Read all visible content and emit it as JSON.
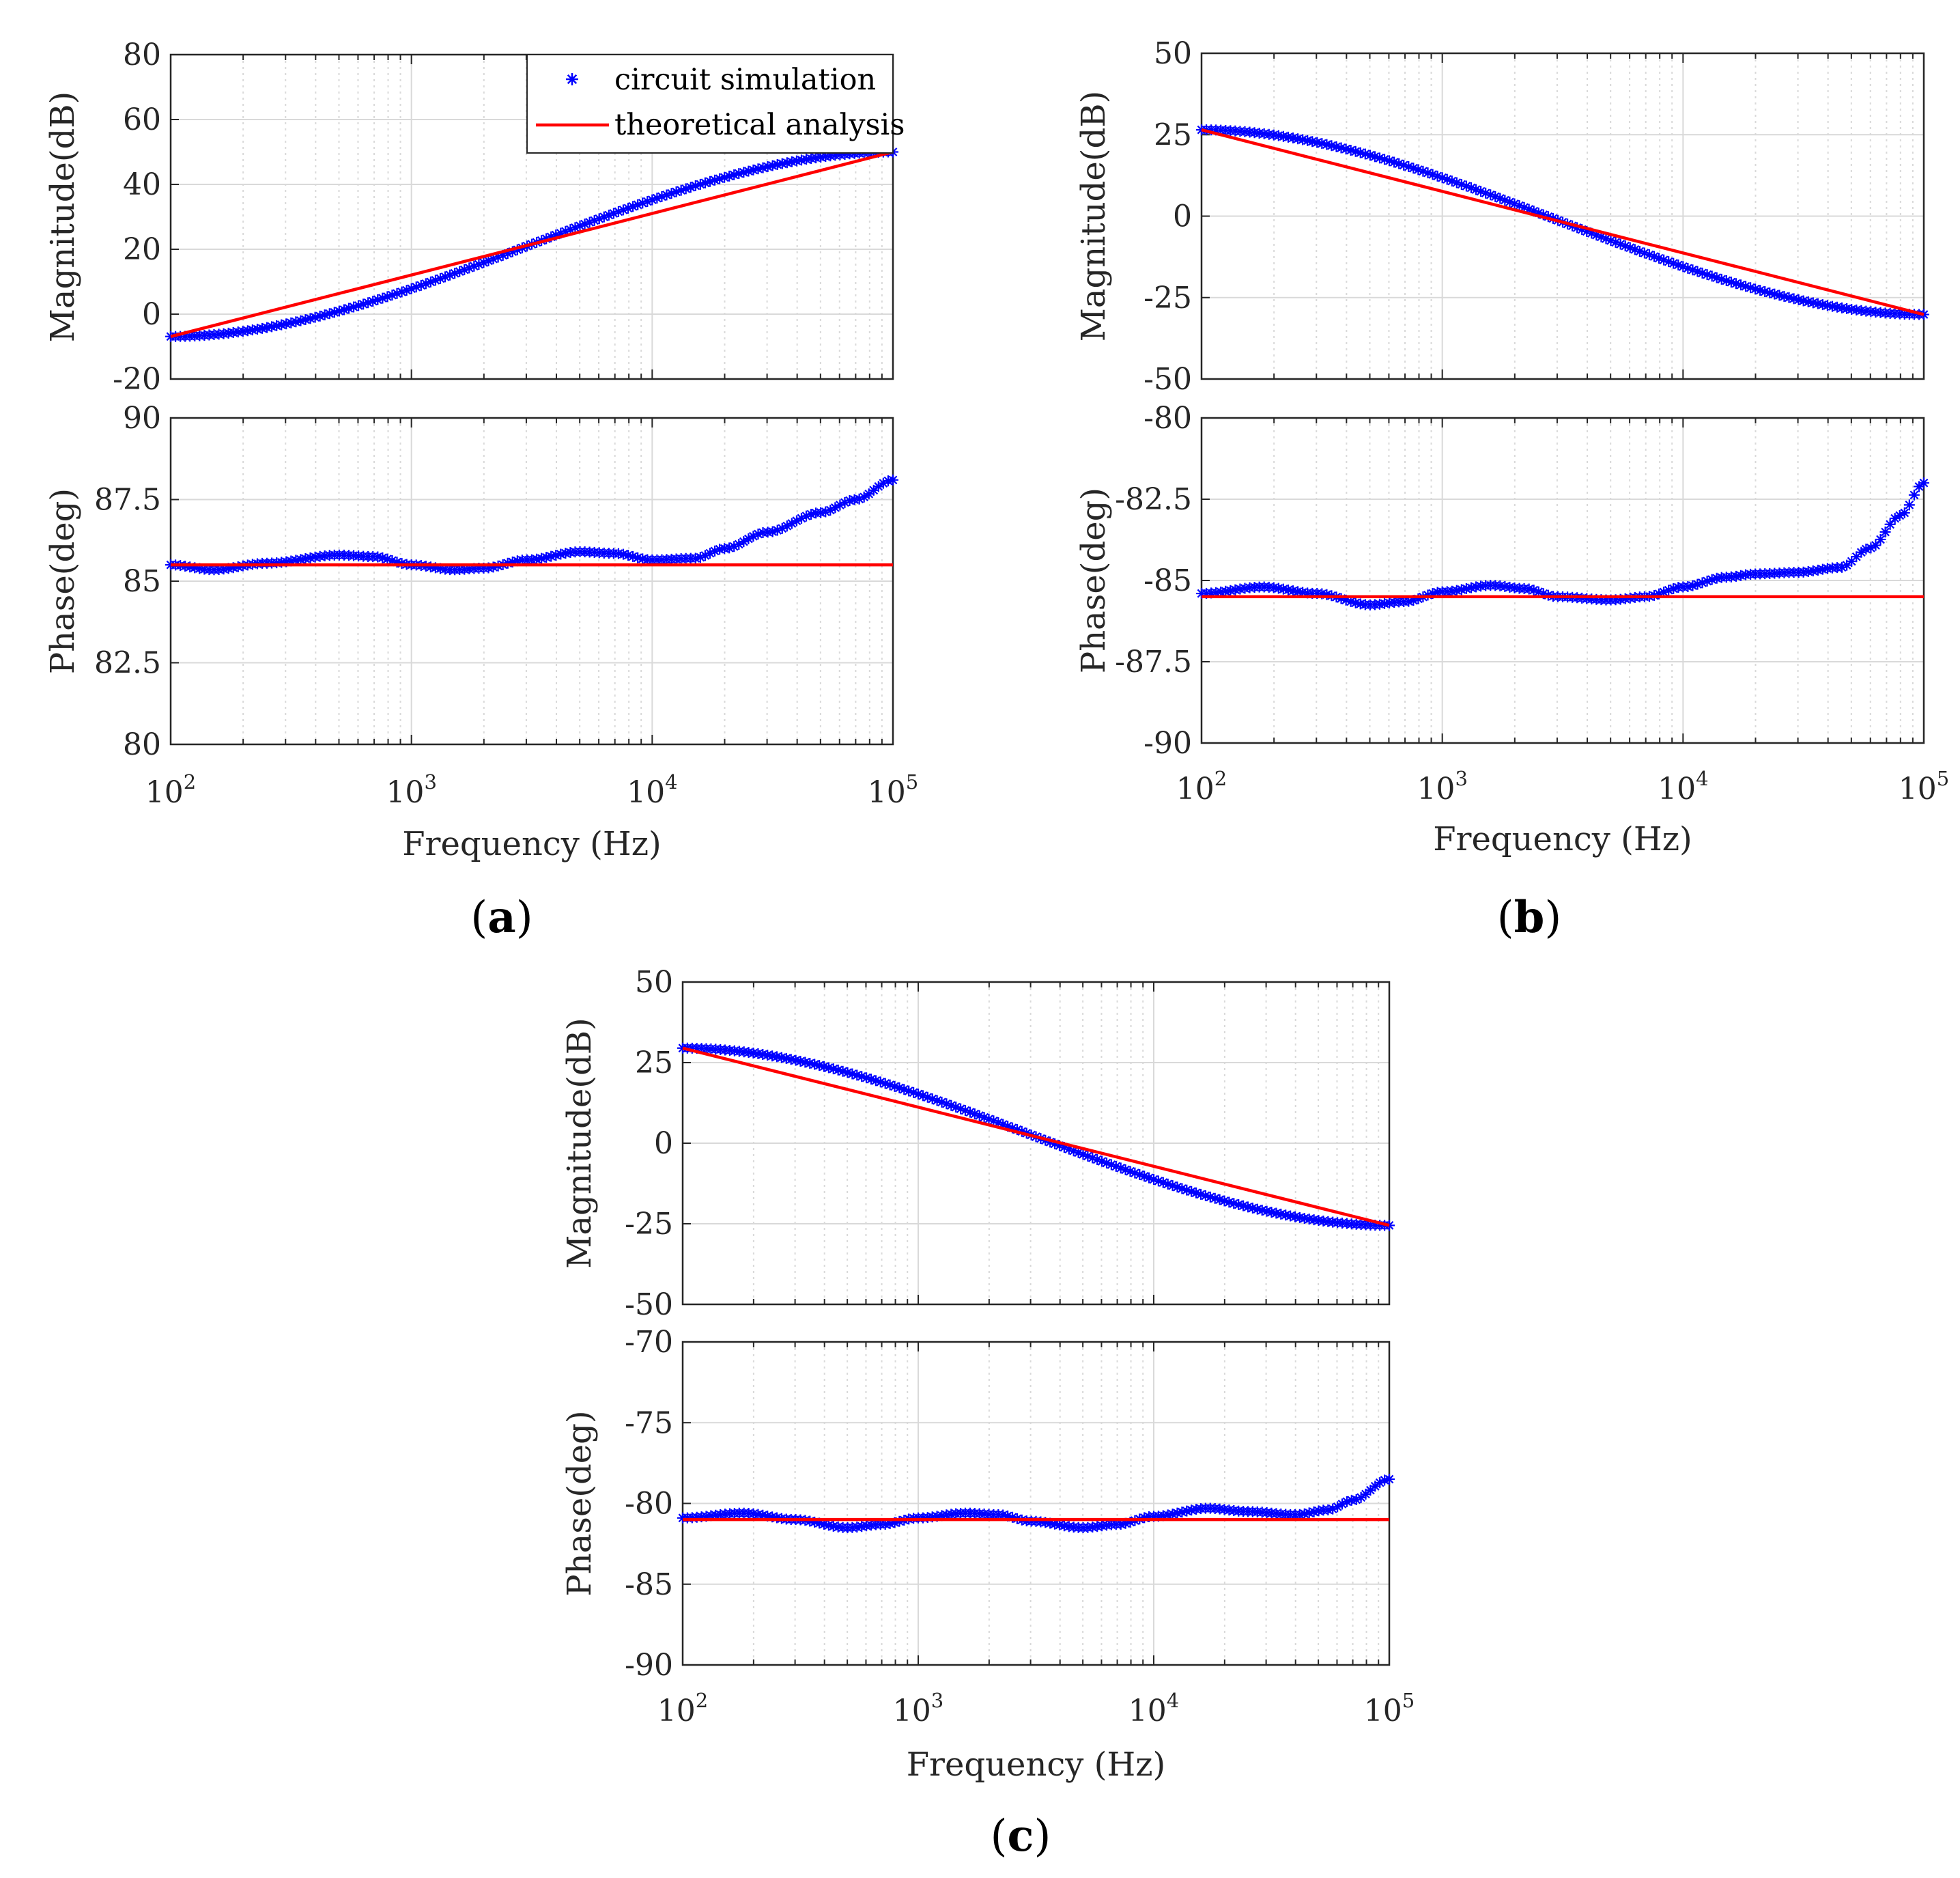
{
  "colors": {
    "simulation": "#0000ff",
    "theory": "#ff0000",
    "grid_major": "#d9d9d9",
    "grid_minor": "#d9d9d9",
    "axis": "#262626"
  },
  "legend": {
    "simulation_label": "circuit simulation",
    "theory_label": "theoretical analysis"
  },
  "x_axis": {
    "label": "Frequency (Hz)",
    "tick_base": "10",
    "tick_exponents": [
      "2",
      "3",
      "4",
      "5"
    ]
  },
  "chart_data": [
    {
      "panel": "a",
      "caption": "(a)",
      "caption_letter": "a",
      "magnitude": {
        "type": "line",
        "ylabel": "Magnitude(dB)",
        "xscale": "log",
        "xlim": [
          100,
          100000
        ],
        "ylim": [
          -20,
          80
        ],
        "ytick_labels": [
          "-20",
          "0",
          "20",
          "40",
          "60",
          "80"
        ],
        "ytick_values": [
          -20,
          0,
          20,
          40,
          60,
          80
        ],
        "theory_line": {
          "x": [
            100,
            100000
          ],
          "y": [
            -6.9,
            50.0
          ]
        },
        "simulation": {
          "x": [
            100,
            100000
          ],
          "y": [
            -6.9,
            50.0
          ]
        }
      },
      "phase": {
        "type": "line",
        "ylabel": "Phase(deg)",
        "xscale": "log",
        "xlim": [
          100,
          100000
        ],
        "ylim": [
          80,
          90
        ],
        "ytick_labels": [
          "80",
          "82.5",
          "85",
          "87.5",
          "90"
        ],
        "ytick_values": [
          80,
          82.5,
          85,
          87.5,
          90
        ],
        "theory_line": {
          "x": [
            100,
            100000
          ],
          "y": [
            85.5,
            85.5
          ]
        },
        "simulation": {
          "x": [
            100,
            150,
            250,
            500,
            700,
            1000,
            1500,
            2000,
            3000,
            5000,
            7000,
            10000,
            15000,
            20000,
            30000,
            50000,
            70000,
            100000
          ],
          "y": [
            85.5,
            85.35,
            85.55,
            85.8,
            85.75,
            85.5,
            85.35,
            85.4,
            85.65,
            85.9,
            85.85,
            85.65,
            85.7,
            86.0,
            86.5,
            87.1,
            87.5,
            88.1
          ]
        }
      }
    },
    {
      "panel": "b",
      "caption": "(b)",
      "caption_letter": "b",
      "magnitude": {
        "type": "line",
        "ylabel": "Magnitude(dB)",
        "xscale": "log",
        "xlim": [
          100,
          100000
        ],
        "ylim": [
          -50,
          50
        ],
        "ytick_labels": [
          "-50",
          "-25",
          "0",
          "25",
          "50"
        ],
        "ytick_values": [
          -50,
          -25,
          0,
          25,
          50
        ],
        "theory_line": {
          "x": [
            100,
            100000
          ],
          "y": [
            26.5,
            -30.2
          ]
        },
        "simulation": {
          "x": [
            100,
            100000
          ],
          "y": [
            26.5,
            -30.2
          ]
        }
      },
      "phase": {
        "type": "line",
        "ylabel": "Phase(deg)",
        "xscale": "log",
        "xlim": [
          100,
          100000
        ],
        "ylim": [
          -90,
          -80
        ],
        "ytick_labels": [
          "-90",
          "-87.5",
          "-85",
          "-82.5",
          "-80"
        ],
        "ytick_values": [
          -90,
          -87.5,
          -85,
          -82.5,
          -80
        ],
        "theory_line": {
          "x": [
            100,
            100000
          ],
          "y": [
            -85.5,
            -85.5
          ]
        },
        "simulation": {
          "x": [
            100,
            180,
            300,
            500,
            700,
            1000,
            1600,
            2200,
            3000,
            5000,
            7000,
            10000,
            15000,
            20000,
            30000,
            45000,
            60000,
            80000,
            100000
          ],
          "y": [
            -85.4,
            -85.2,
            -85.4,
            -85.75,
            -85.65,
            -85.35,
            -85.15,
            -85.25,
            -85.5,
            -85.6,
            -85.5,
            -85.2,
            -84.9,
            -84.8,
            -84.75,
            -84.6,
            -84.0,
            -83.0,
            -82.0
          ]
        }
      }
    },
    {
      "panel": "c",
      "caption": "(c)",
      "caption_letter": "c",
      "magnitude": {
        "type": "line",
        "ylabel": "Magnitude(dB)",
        "xscale": "log",
        "xlim": [
          100,
          100000
        ],
        "ylim": [
          -50,
          50
        ],
        "ytick_labels": [
          "-50",
          "-25",
          "0",
          "25",
          "50"
        ],
        "ytick_values": [
          -50,
          -25,
          0,
          25,
          50
        ],
        "theory_line": {
          "x": [
            100,
            100000
          ],
          "y": [
            29.5,
            -25.5
          ]
        },
        "simulation": {
          "x": [
            100,
            100000
          ],
          "y": [
            29.5,
            -25.5
          ]
        }
      },
      "phase": {
        "type": "line",
        "ylabel": "Phase(deg)",
        "xscale": "log",
        "xlim": [
          100,
          100000
        ],
        "ylim": [
          -90,
          -70
        ],
        "ytick_labels": [
          "-90",
          "-85",
          "-80",
          "-75",
          "-70"
        ],
        "ytick_values": [
          -90,
          -85,
          -80,
          -75,
          -70
        ],
        "theory_line": {
          "x": [
            100,
            100000
          ],
          "y": [
            -81.0,
            -81.0
          ]
        },
        "simulation": {
          "x": [
            100,
            180,
            300,
            500,
            700,
            1000,
            1600,
            2200,
            3000,
            5000,
            7000,
            10000,
            17000,
            25000,
            40000,
            55000,
            70000,
            100000
          ],
          "y": [
            -80.9,
            -80.6,
            -81.0,
            -81.5,
            -81.3,
            -80.9,
            -80.6,
            -80.7,
            -81.1,
            -81.5,
            -81.3,
            -80.8,
            -80.3,
            -80.5,
            -80.7,
            -80.4,
            -79.8,
            -78.5
          ]
        }
      }
    }
  ]
}
